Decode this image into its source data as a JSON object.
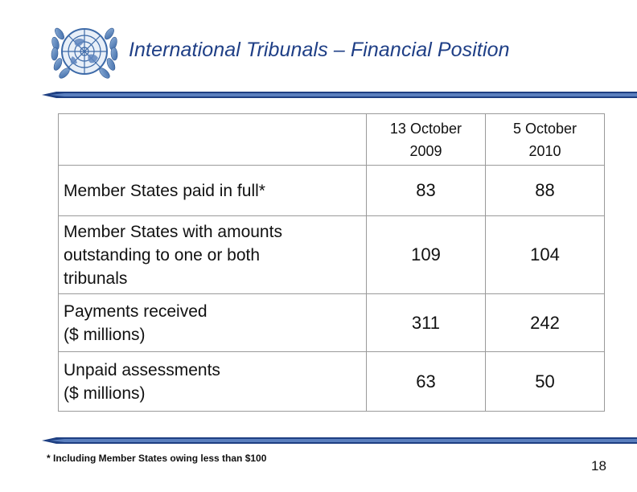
{
  "slide": {
    "title": "International Tribunals – Financial Position",
    "logo_icon": "un-emblem-icon",
    "accent_color": "#1f3f86",
    "rule_color": "#1e3f82"
  },
  "table": {
    "columns": [
      {
        "line1": "13 October",
        "line2": "2009"
      },
      {
        "line1": "5 October",
        "line2": "2010"
      }
    ],
    "rows": [
      {
        "label_lines": [
          "Member States paid in full*"
        ],
        "values": [
          "83",
          "88"
        ]
      },
      {
        "label_lines": [
          "Member States with amounts",
          "outstanding to one or both",
          "tribunals"
        ],
        "values": [
          "109",
          "104"
        ]
      },
      {
        "label_lines": [
          "Payments received",
          "($ millions)"
        ],
        "values": [
          "311",
          "242"
        ]
      },
      {
        "label_lines": [
          "Unpaid assessments",
          "($ millions)"
        ],
        "values": [
          "63",
          "50"
        ]
      }
    ]
  },
  "footnote": "* Including Member States owing less than $100",
  "page_number": "18"
}
